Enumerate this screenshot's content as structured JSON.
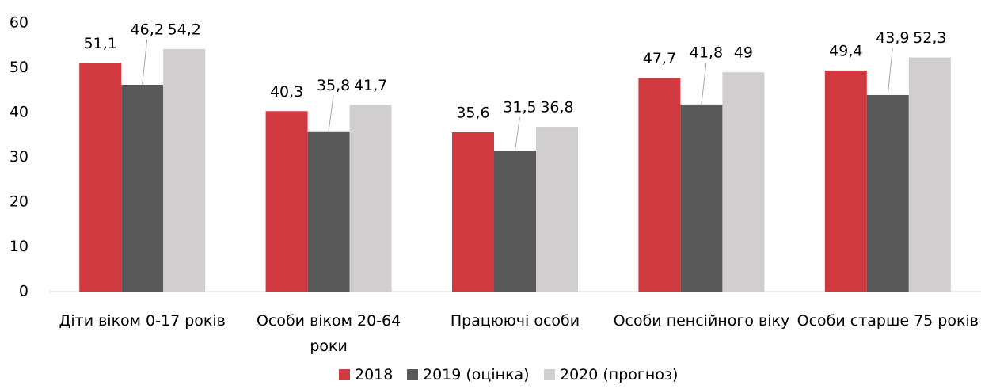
{
  "chart_data": {
    "type": "bar",
    "categories": [
      "Діти віком 0-17 років",
      "Особи віком 20-64 роки",
      "Працюючі особи",
      "Особи пенсійного віку",
      "Особи старше 75 років"
    ],
    "series": [
      {
        "name": "2018",
        "color": "#d0393f",
        "values": [
          51.1,
          40.3,
          35.6,
          47.7,
          49.4
        ],
        "value_labels": [
          "51,1",
          "40,3",
          "35,6",
          "47,7",
          "49,4"
        ]
      },
      {
        "name": "2019 (оцінка)",
        "color": "#595959",
        "values": [
          46.2,
          35.8,
          31.5,
          41.8,
          43.9
        ],
        "value_labels": [
          "46,2",
          "35,8",
          "31,5",
          "41,8",
          "43,9"
        ]
      },
      {
        "name": "2020 (прогноз)",
        "color": "#d0cece",
        "values": [
          54.2,
          41.7,
          36.8,
          49,
          52.3
        ],
        "value_labels": [
          "54,2",
          "41,7",
          "36,8",
          "49",
          "52,3"
        ]
      }
    ],
    "ylim": [
      0,
      60
    ],
    "yticks": [
      0,
      10,
      20,
      30,
      40,
      50,
      60
    ],
    "grid": false,
    "legend": "bottom"
  }
}
